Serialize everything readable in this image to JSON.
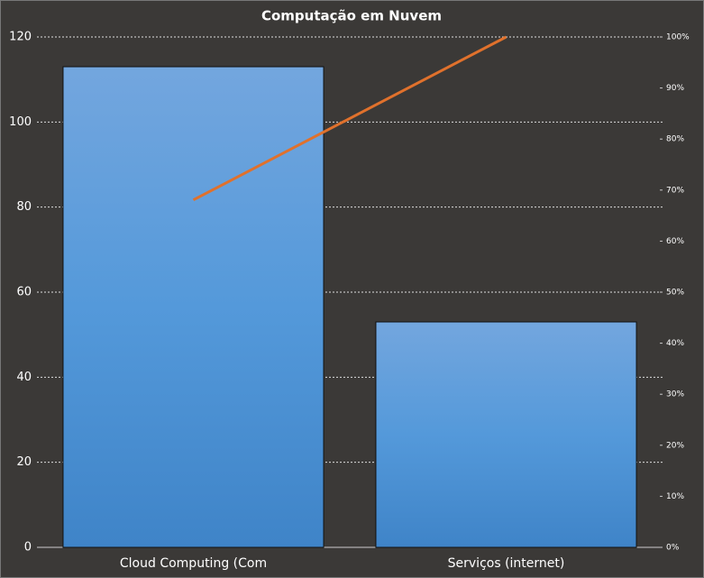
{
  "chart_data": {
    "type": "pareto",
    "title": "Computação em Nuvem",
    "categories": [
      "Cloud Computing (Com",
      "Serviços (internet)"
    ],
    "series": [
      {
        "type": "bar",
        "color": "#5499da",
        "values": [
          113,
          53
        ]
      },
      {
        "type": "line",
        "axis": "y2",
        "color": "#e0712c",
        "values": [
          68.07,
          100
        ]
      }
    ],
    "ylim": [
      0,
      120
    ],
    "yticks": [
      0,
      20,
      40,
      60,
      80,
      100,
      120
    ],
    "y2lim": [
      0,
      100
    ],
    "y2ticks": [
      {
        "value": 0,
        "label": "0%"
      },
      {
        "value": 10,
        "label": "10%"
      },
      {
        "value": 20,
        "label": "20%"
      },
      {
        "value": 30,
        "label": "30%"
      },
      {
        "value": 40,
        "label": "40%"
      },
      {
        "value": 50,
        "label": "50%"
      },
      {
        "value": 60,
        "label": "60%"
      },
      {
        "value": 70,
        "label": "70%"
      },
      {
        "value": 80,
        "label": "80%"
      },
      {
        "value": 90,
        "label": "90%"
      },
      {
        "value": 100,
        "label": "100%"
      }
    ],
    "grid": true
  }
}
